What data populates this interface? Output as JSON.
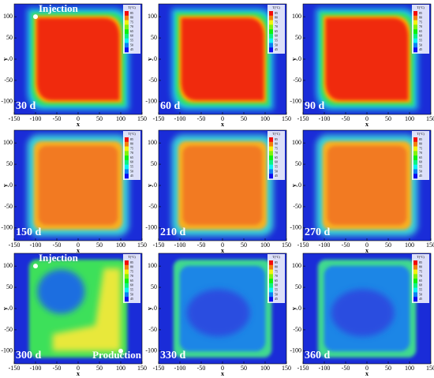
{
  "chart_data": [
    {
      "type": "heatmap",
      "title": "30 d",
      "xlabel": "x",
      "ylabel": "y",
      "xlim": [
        -150,
        150
      ],
      "xticks": [
        -150,
        -100,
        -50,
        0,
        50,
        100,
        150
      ],
      "ylim": [
        -130,
        130
      ],
      "yticks": [
        -100,
        -50,
        0,
        50,
        100
      ],
      "colorbar_title": "T(°C)",
      "colorbar_ticks": [
        85,
        80,
        75,
        70,
        65,
        60,
        55,
        50,
        45
      ],
      "annotations": [
        "Injection"
      ]
    },
    {
      "type": "heatmap",
      "title": "60 d",
      "xlabel": "x",
      "ylabel": "y",
      "xlim": [
        -150,
        150
      ],
      "xticks": [
        -150,
        -100,
        -50,
        0,
        50,
        100,
        150
      ],
      "ylim": [
        -130,
        130
      ],
      "yticks": [
        -100,
        -50,
        0,
        50,
        100
      ],
      "colorbar_title": "T(°C)",
      "colorbar_ticks": [
        85,
        80,
        75,
        70,
        65,
        60,
        55,
        50,
        45
      ]
    },
    {
      "type": "heatmap",
      "title": "90 d",
      "xlabel": "x",
      "ylabel": "y",
      "xlim": [
        -150,
        150
      ],
      "xticks": [
        -150,
        -100,
        -50,
        0,
        50,
        100,
        150
      ],
      "ylim": [
        -130,
        130
      ],
      "yticks": [
        -100,
        -50,
        0,
        50,
        100
      ],
      "colorbar_title": "T(°C)",
      "colorbar_ticks": [
        85,
        80,
        75,
        70,
        65,
        60,
        55,
        50,
        45
      ]
    },
    {
      "type": "heatmap",
      "title": "150 d",
      "xlabel": "x",
      "ylabel": "y",
      "xlim": [
        -150,
        150
      ],
      "xticks": [
        -150,
        -100,
        -50,
        0,
        50,
        100,
        150
      ],
      "ylim": [
        -130,
        130
      ],
      "yticks": [
        -100,
        -50,
        0,
        50,
        100
      ],
      "colorbar_title": "T(°C)",
      "colorbar_ticks": [
        85,
        80,
        75,
        70,
        65,
        60,
        55,
        50,
        45
      ]
    },
    {
      "type": "heatmap",
      "title": "210 d",
      "xlabel": "x",
      "ylabel": "y",
      "xlim": [
        -150,
        150
      ],
      "xticks": [
        -150,
        -100,
        -50,
        0,
        50,
        100,
        150
      ],
      "ylim": [
        -130,
        130
      ],
      "yticks": [
        -100,
        -50,
        0,
        50,
        100
      ],
      "colorbar_title": "T(°C)",
      "colorbar_ticks": [
        85,
        80,
        75,
        70,
        65,
        60,
        55,
        50,
        45
      ]
    },
    {
      "type": "heatmap",
      "title": "270 d",
      "xlabel": "x",
      "ylabel": "y",
      "xlim": [
        -150,
        150
      ],
      "xticks": [
        -150,
        -100,
        -50,
        0,
        50,
        100,
        150
      ],
      "ylim": [
        -130,
        130
      ],
      "yticks": [
        -100,
        -50,
        0,
        50,
        100
      ],
      "colorbar_title": "T(°C)",
      "colorbar_ticks": [
        85,
        80,
        75,
        70,
        65,
        60,
        55,
        50,
        45
      ]
    },
    {
      "type": "heatmap",
      "title": "300 d",
      "xlabel": "x",
      "ylabel": "y",
      "xlim": [
        -150,
        150
      ],
      "xticks": [
        -150,
        -100,
        -50,
        0,
        50,
        100,
        150
      ],
      "ylim": [
        -130,
        130
      ],
      "yticks": [
        -100,
        -50,
        0,
        50,
        100
      ],
      "colorbar_title": "T(°C)",
      "colorbar_ticks": [
        85,
        80,
        75,
        70,
        65,
        60,
        55,
        50,
        45
      ],
      "annotations": [
        "Injection",
        "Production"
      ]
    },
    {
      "type": "heatmap",
      "title": "330 d",
      "xlabel": "x",
      "ylabel": "y",
      "xlim": [
        -150,
        150
      ],
      "xticks": [
        -150,
        -100,
        -50,
        0,
        50,
        100,
        150
      ],
      "ylim": [
        -130,
        130
      ],
      "yticks": [
        -100,
        -50,
        0,
        50,
        100
      ],
      "colorbar_title": "T(°C)",
      "colorbar_ticks": [
        85,
        80,
        75,
        70,
        65,
        60,
        55,
        50,
        45
      ]
    },
    {
      "type": "heatmap",
      "title": "360 d",
      "xlabel": "x",
      "ylabel": "y",
      "xlim": [
        -150,
        150
      ],
      "xticks": [
        -150,
        -100,
        -50,
        0,
        50,
        100,
        150
      ],
      "ylim": [
        -130,
        130
      ],
      "yticks": [
        -100,
        -50,
        0,
        50,
        100
      ],
      "colorbar_title": "T(°C)",
      "colorbar_ticks": [
        85,
        80,
        75,
        70,
        65,
        60,
        55,
        50,
        45
      ]
    }
  ]
}
